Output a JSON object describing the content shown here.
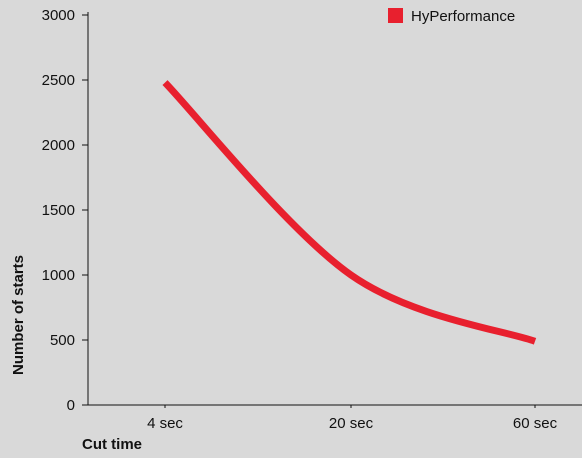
{
  "chart_data": {
    "type": "line",
    "xlabel": "Cut time",
    "ylabel": "Number of starts",
    "categories": [
      "4 sec",
      "20 sec",
      "60 sec"
    ],
    "ylim": [
      0,
      3000
    ],
    "yticks": [
      0,
      500,
      1000,
      1500,
      2000,
      2500,
      3000
    ],
    "grid": false,
    "legend_position": "top-right",
    "series": [
      {
        "name": "HyPerformance",
        "color": "#e8202e",
        "points": [
          {
            "x": "4 sec",
            "y": 2480
          },
          {
            "x": "20 sec",
            "y": 1000
          },
          {
            "x": "60 sec",
            "y": 490
          }
        ]
      }
    ]
  }
}
